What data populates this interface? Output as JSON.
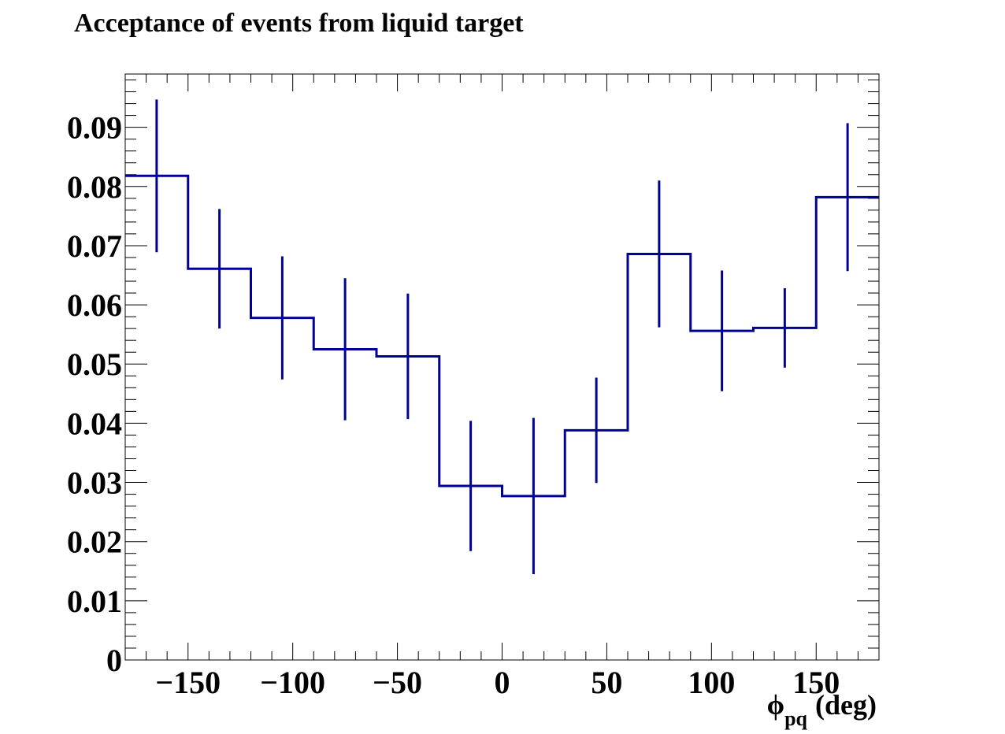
{
  "chart_data": {
    "type": "histogram",
    "title": "Acceptance of events from liquid target",
    "xlabel_symbol": "ϕ",
    "xlabel_subscript": "pq",
    "xlabel_unit": "(deg)",
    "ylabel": "",
    "xlim": [
      -180,
      180
    ],
    "ylim": [
      0,
      0.099
    ],
    "x_ticks": [
      -150,
      -100,
      -50,
      0,
      50,
      100,
      150
    ],
    "x_tick_labels": [
      "−150",
      "−100",
      "−50",
      "0",
      "50",
      "100",
      "150"
    ],
    "y_ticks": [
      0,
      0.01,
      0.02,
      0.03,
      0.04,
      0.05,
      0.06,
      0.07,
      0.08,
      0.09
    ],
    "y_tick_labels": [
      "0",
      "0.01",
      "0.02",
      "0.03",
      "0.04",
      "0.05",
      "0.06",
      "0.07",
      "0.08",
      "0.09"
    ],
    "bin_edges": [
      -180,
      -150,
      -120,
      -90,
      -60,
      -30,
      0,
      30,
      60,
      90,
      120,
      150,
      180
    ],
    "values": [
      0.0818,
      0.0661,
      0.0578,
      0.0525,
      0.0513,
      0.0294,
      0.0277,
      0.0388,
      0.0686,
      0.0556,
      0.0561,
      0.0782
    ],
    "errors": [
      0.0129,
      0.0101,
      0.0104,
      0.012,
      0.0106,
      0.011,
      0.0132,
      0.0089,
      0.0124,
      0.0102,
      0.0067,
      0.0125
    ],
    "color": "#000099",
    "grid": false,
    "legend": "none"
  }
}
